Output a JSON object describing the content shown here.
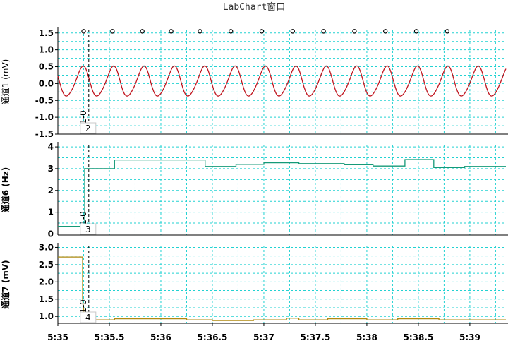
{
  "window": {
    "title": "LabChart窗口"
  },
  "chart_data": {
    "type": "line",
    "x_axis": {
      "tick_labels": [
        "5:35",
        "5:35.5",
        "5:36",
        "5:36.5",
        "5:37",
        "5:37.5",
        "5:38",
        "5:38.5",
        "5:39"
      ],
      "tick_values": [
        0,
        0.5,
        1,
        1.5,
        2,
        2.5,
        3,
        3.5,
        4
      ],
      "range": [
        0,
        4.35
      ]
    },
    "cursor": {
      "label": "1-0",
      "time": 0.3
    },
    "channels": [
      {
        "id": "ch1",
        "ylabel": "通道1 (mV)",
        "ylabel_bold": false,
        "ylim": [
          -1.5,
          1.6
        ],
        "yticks": [
          1.5,
          1.0,
          0.5,
          0.0,
          -0.5,
          -1.0,
          -1.5
        ],
        "ytick_labels": [
          "1.5",
          "1.0",
          "0.5",
          "0.0",
          "-0.5",
          "-1.0",
          "-1.5"
        ],
        "color": "#c0141e",
        "kind": "signal",
        "signal": {
          "baseline": 0.05,
          "amplitude": 0.44,
          "period": 0.295,
          "phase_time": 0.24
        },
        "beat_marker_times": [
          0.25,
          0.53,
          0.82,
          1.1,
          1.38,
          1.68,
          1.98,
          2.28,
          2.58,
          2.88,
          3.18,
          3.48,
          3.78
        ],
        "beat_marker_y": 1.55,
        "cursor_value": "2"
      },
      {
        "id": "ch6",
        "ylabel": "通道6 (Hz)",
        "ylabel_bold": true,
        "ylim": [
          -0.05,
          4.1
        ],
        "yticks": [
          4,
          3,
          2,
          1,
          0
        ],
        "ytick_labels": [
          "4",
          "3",
          "2",
          "1",
          "0"
        ],
        "color": "#159a78",
        "kind": "step",
        "steps": [
          [
            0.0,
            0.35
          ],
          [
            0.26,
            0.35
          ],
          [
            0.26,
            1.3
          ],
          [
            0.26,
            3.0
          ],
          [
            0.55,
            3.0
          ],
          [
            0.55,
            3.4
          ],
          [
            1.43,
            3.4
          ],
          [
            1.43,
            3.1
          ],
          [
            1.73,
            3.1
          ],
          [
            1.73,
            3.2
          ],
          [
            2.0,
            3.2
          ],
          [
            2.0,
            3.27
          ],
          [
            2.34,
            3.27
          ],
          [
            2.34,
            3.23
          ],
          [
            2.78,
            3.23
          ],
          [
            2.78,
            3.18
          ],
          [
            3.06,
            3.18
          ],
          [
            3.06,
            3.12
          ],
          [
            3.37,
            3.12
          ],
          [
            3.37,
            3.42
          ],
          [
            3.65,
            3.42
          ],
          [
            3.65,
            3.05
          ],
          [
            3.95,
            3.05
          ],
          [
            3.95,
            3.1
          ],
          [
            4.35,
            3.1
          ]
        ],
        "cursor_value": "3"
      },
      {
        "id": "ch7",
        "ylabel": "通道7 (mV)",
        "ylabel_bold": true,
        "ylim": [
          0.8,
          3.05
        ],
        "yticks": [
          3.0,
          2.5,
          2.0,
          1.5,
          1.0
        ],
        "ytick_labels": [
          "3.0",
          "2.5",
          "2.0",
          "1.5",
          "1.0"
        ],
        "color": "#b08a10",
        "kind": "step",
        "steps": [
          [
            0.0,
            2.72
          ],
          [
            0.24,
            2.72
          ],
          [
            0.24,
            1.5
          ],
          [
            0.26,
            0.9
          ],
          [
            0.55,
            0.9
          ],
          [
            0.55,
            0.93
          ],
          [
            1.25,
            0.93
          ],
          [
            1.25,
            0.9
          ],
          [
            1.5,
            0.9
          ],
          [
            1.5,
            0.88
          ],
          [
            1.9,
            0.88
          ],
          [
            1.9,
            0.9
          ],
          [
            2.22,
            0.9
          ],
          [
            2.22,
            0.95
          ],
          [
            2.34,
            0.95
          ],
          [
            2.34,
            0.9
          ],
          [
            2.62,
            0.9
          ],
          [
            2.62,
            0.93
          ],
          [
            3.0,
            0.93
          ],
          [
            3.0,
            0.9
          ],
          [
            3.3,
            0.9
          ],
          [
            3.3,
            0.93
          ],
          [
            3.7,
            0.93
          ],
          [
            3.7,
            0.9
          ],
          [
            4.35,
            0.9
          ]
        ],
        "cursor_value": "4"
      }
    ]
  }
}
